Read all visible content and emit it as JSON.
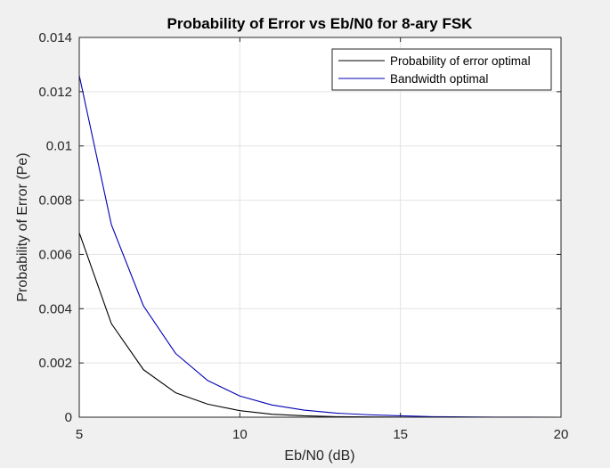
{
  "chart_data": {
    "type": "line",
    "title": "Probability of Error vs Eb/N0 for 8-ary FSK",
    "xlabel": "Eb/N0 (dB)",
    "ylabel": "Probability of Error (Pe)",
    "xlim": [
      5,
      20
    ],
    "ylim": [
      0,
      0.014
    ],
    "xticks": [
      5,
      10,
      15,
      20
    ],
    "xtick_labels": [
      "5",
      "10",
      "15",
      "20"
    ],
    "yticks": [
      0,
      0.002,
      0.004,
      0.006,
      0.008,
      0.01,
      0.012,
      0.014
    ],
    "ytick_labels": [
      "0",
      "0.002",
      "0.004",
      "0.006",
      "0.008",
      "0.01",
      "0.012",
      "0.014"
    ],
    "grid": true,
    "legend_position": "top-right",
    "x": [
      5,
      6,
      7,
      8,
      9,
      10,
      11,
      12,
      13,
      14,
      15,
      16,
      17,
      18,
      19,
      20
    ],
    "series": [
      {
        "name": "Probability of error optimal",
        "color": "#000000",
        "values": [
          0.0068,
          0.00345,
          0.00175,
          0.0009,
          0.00048,
          0.00024,
          0.00011,
          5e-05,
          2e-05,
          1e-05,
          4e-06,
          1e-06,
          3e-07,
          1e-07,
          2e-08,
          0.0
        ]
      },
      {
        "name": "Bandwidth optimal",
        "color": "#0000b3",
        "values": [
          0.0126,
          0.0071,
          0.0041,
          0.00235,
          0.00135,
          0.00078,
          0.00045,
          0.00026,
          0.00015,
          9e-05,
          5e-05,
          2e-05,
          1e-05,
          4e-06,
          1e-06,
          0.0
        ]
      }
    ]
  }
}
